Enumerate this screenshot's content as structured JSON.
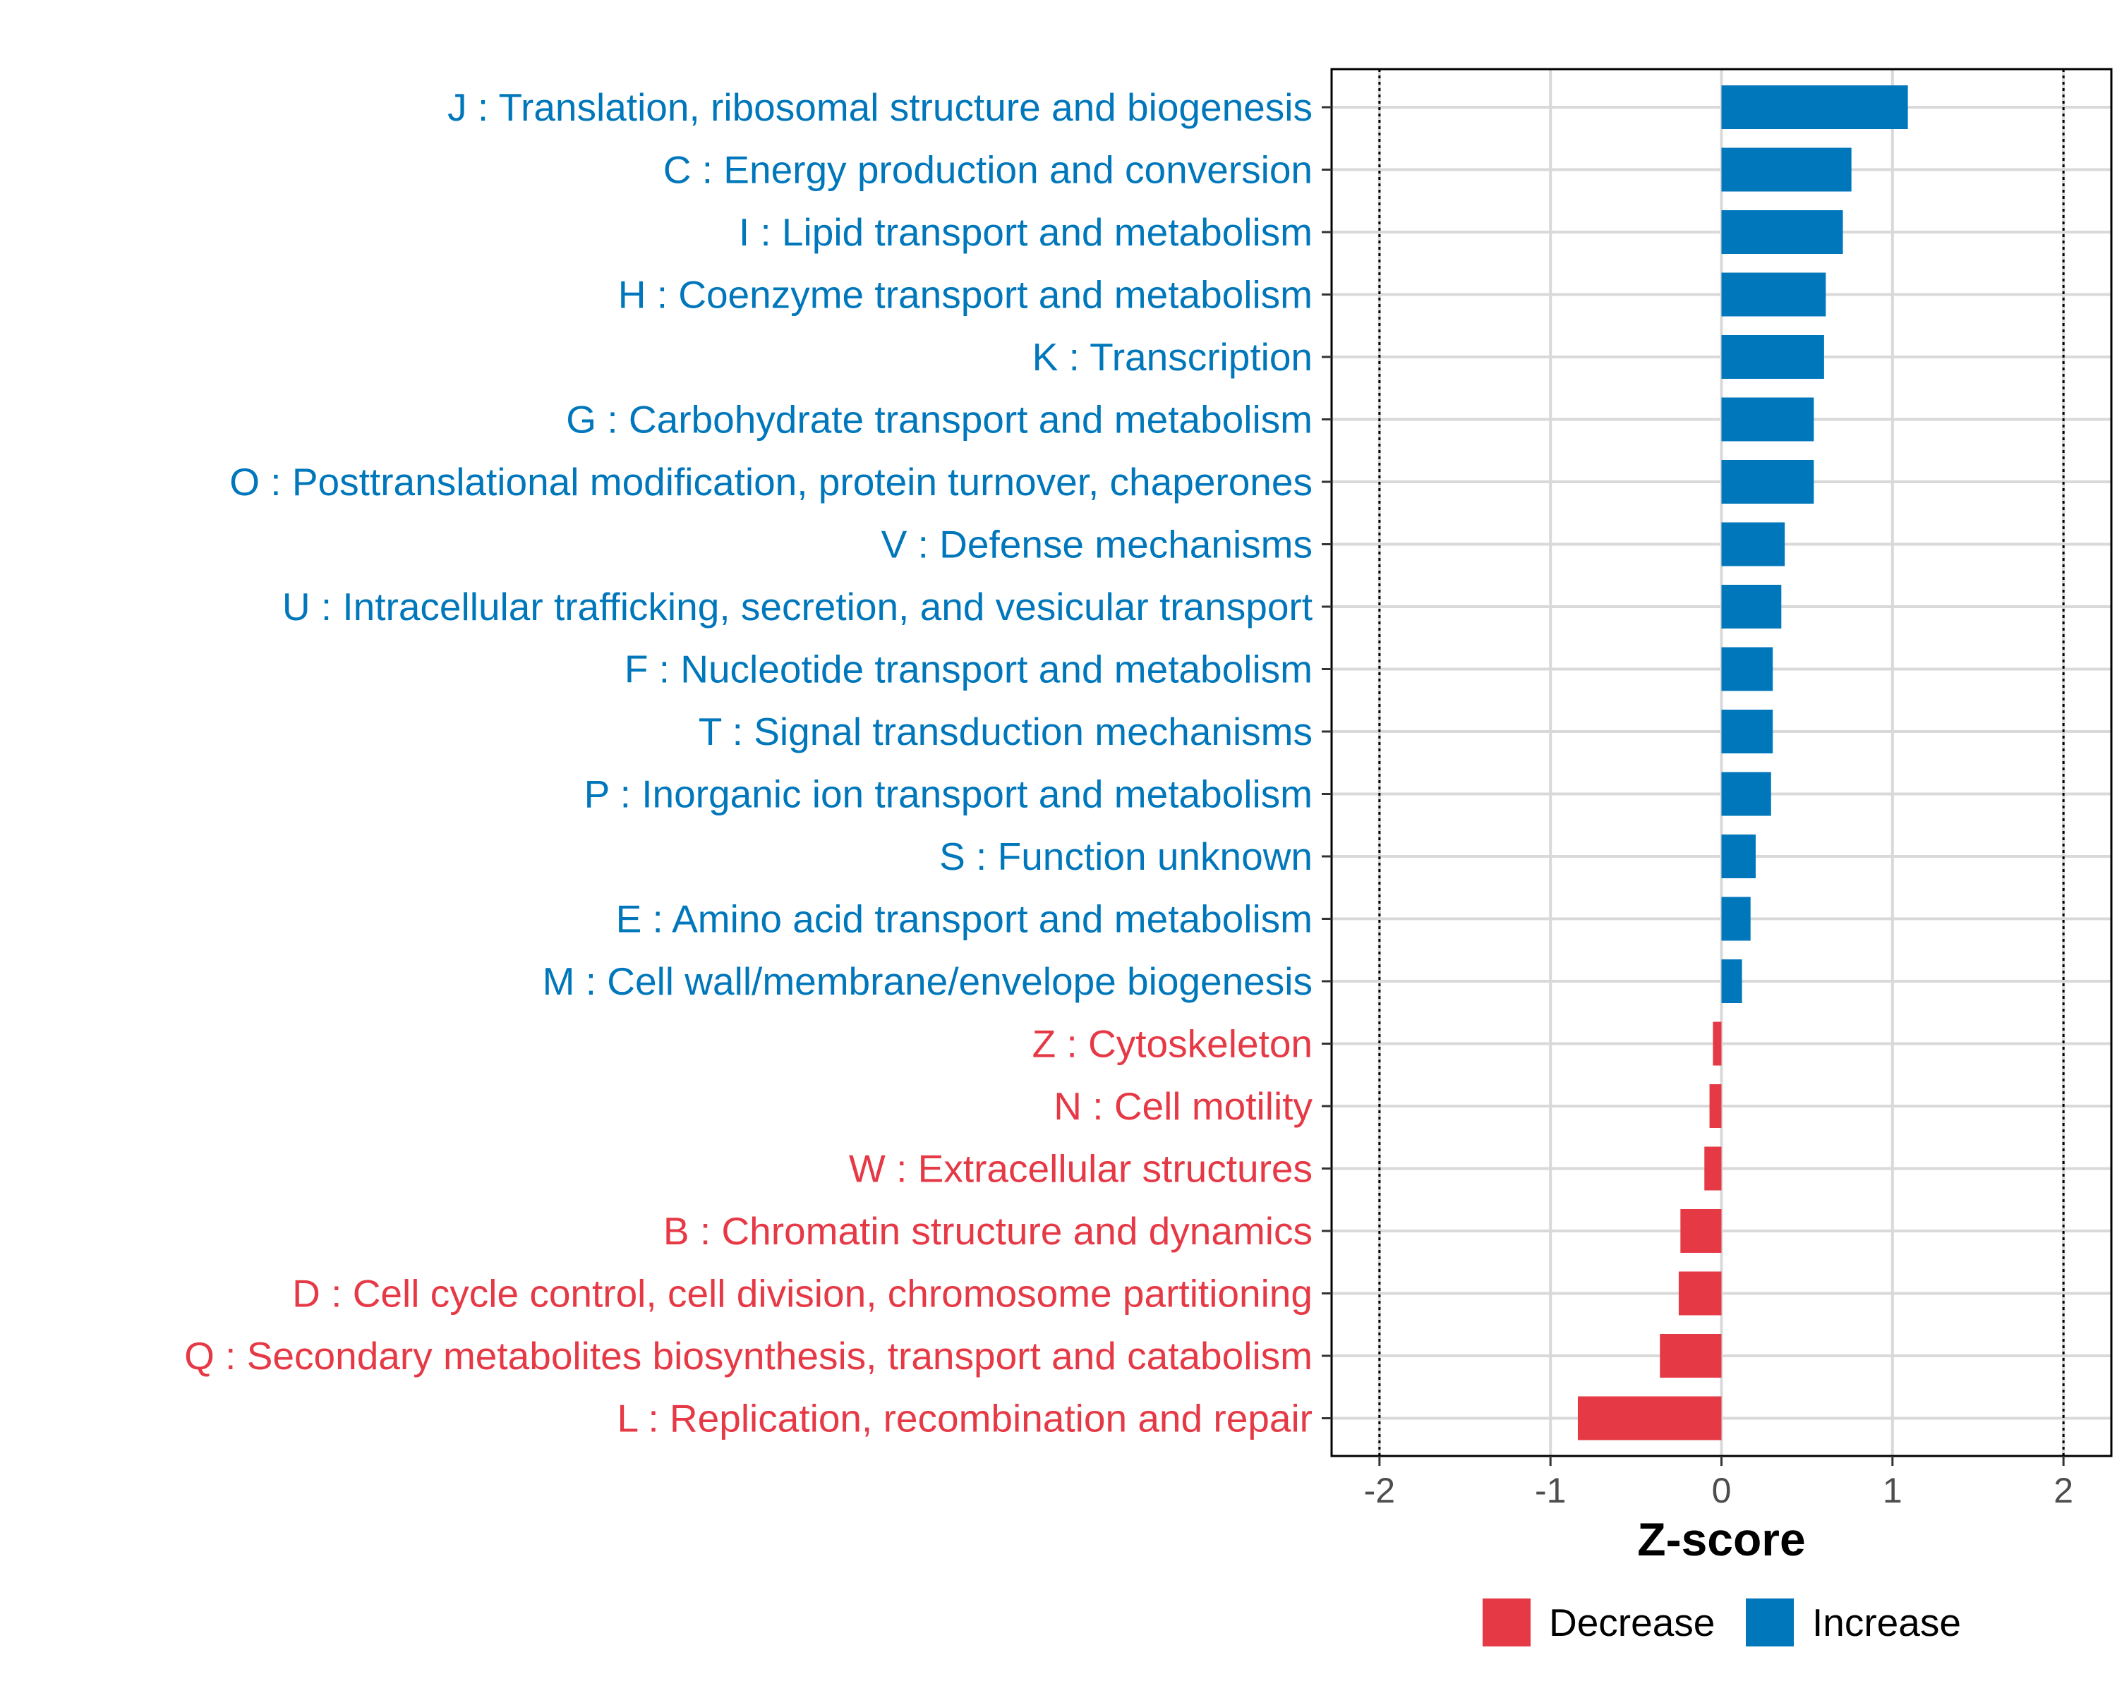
{
  "chart_data": {
    "type": "bar",
    "orientation": "horizontal",
    "xlabel": "Z-score",
    "xlim": [
      -2.28,
      2.28
    ],
    "xticks": [
      -2,
      -1,
      0,
      1,
      2
    ],
    "xtick_labels": [
      "-2",
      "-1",
      "0",
      "1",
      "2"
    ],
    "reference_lines": [
      -2,
      2
    ],
    "grid": true,
    "categories": [
      "J : Translation, ribosomal structure and biogenesis",
      "C : Energy production and conversion",
      "I : Lipid transport and metabolism",
      "H : Coenzyme transport and metabolism",
      "K : Transcription",
      "G : Carbohydrate transport and metabolism",
      "O : Posttranslational modification, protein turnover, chaperones",
      "V : Defense mechanisms",
      "U : Intracellular trafficking, secretion, and vesicular transport",
      "F : Nucleotide transport and metabolism",
      "T : Signal transduction mechanisms",
      "P : Inorganic ion transport and metabolism",
      "S : Function unknown",
      "E : Amino acid transport and metabolism",
      "M : Cell wall/membrane/envelope biogenesis",
      "Z : Cytoskeleton",
      "N : Cell motility",
      "W : Extracellular structures",
      "B : Chromatin structure and dynamics",
      "D : Cell cycle control, cell division, chromosome partitioning",
      "Q : Secondary metabolites biosynthesis, transport and catabolism",
      "L : Replication, recombination and repair"
    ],
    "values": [
      1.09,
      0.76,
      0.71,
      0.61,
      0.6,
      0.54,
      0.54,
      0.37,
      0.35,
      0.3,
      0.3,
      0.29,
      0.2,
      0.17,
      0.12,
      -0.05,
      -0.07,
      -0.1,
      -0.24,
      -0.25,
      -0.36,
      -0.84
    ],
    "groups": [
      "Increase",
      "Increase",
      "Increase",
      "Increase",
      "Increase",
      "Increase",
      "Increase",
      "Increase",
      "Increase",
      "Increase",
      "Increase",
      "Increase",
      "Increase",
      "Increase",
      "Increase",
      "Decrease",
      "Decrease",
      "Decrease",
      "Decrease",
      "Decrease",
      "Decrease",
      "Decrease"
    ],
    "legend": {
      "position": "bottom",
      "entries": [
        {
          "label": "Decrease",
          "color": "#E63946"
        },
        {
          "label": "Increase",
          "color": "#0077BB"
        }
      ]
    },
    "colors": {
      "Increase": "#0077BB",
      "Decrease": "#E63946"
    }
  }
}
